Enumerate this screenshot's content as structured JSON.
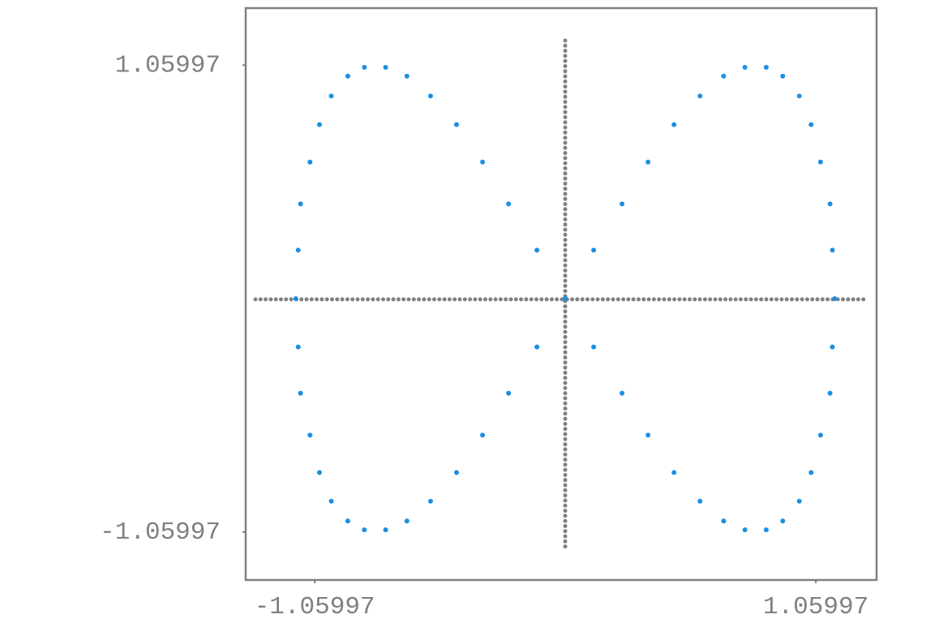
{
  "chart_data": {
    "type": "scatter",
    "series": [
      {
        "color": "#1a8fe3",
        "x": [
          0,
          0.12,
          0.24,
          0.35,
          0.46,
          0.57,
          0.67,
          0.76,
          0.85,
          0.92,
          0.99,
          1.04,
          1.08,
          1.12,
          1.13,
          1.14,
          1.13,
          1.12,
          1.08,
          1.04,
          0.99,
          0.92,
          0.85,
          0.76,
          0.67,
          0.57,
          0.46,
          0.35,
          0.24,
          0.12,
          0,
          -0.12,
          -0.24,
          -0.35,
          -0.46,
          -0.57,
          -0.67,
          -0.76,
          -0.85,
          -0.92,
          -0.99,
          -1.04,
          -1.08,
          -1.12,
          -1.13,
          -1.14,
          -1.13,
          -1.12,
          -1.08,
          -1.04,
          -0.99,
          -0.92,
          -0.85,
          -0.76,
          -0.67,
          -0.57,
          -0.46,
          -0.35,
          -0.24,
          -0.12
        ],
        "values": [
          0,
          0.22,
          0.43,
          0.62,
          0.79,
          0.92,
          1.01,
          1.05,
          1.05,
          1.01,
          0.92,
          0.79,
          0.62,
          0.43,
          0.22,
          0,
          -0.22,
          -0.43,
          -0.62,
          -0.79,
          -0.92,
          -1.01,
          -1.05,
          -1.05,
          -1.01,
          -0.92,
          -0.79,
          -0.62,
          -0.43,
          -0.22,
          0,
          0.22,
          0.43,
          0.62,
          0.79,
          0.92,
          1.01,
          1.05,
          1.05,
          1.01,
          0.92,
          0.79,
          0.62,
          0.43,
          0.22,
          0,
          -0.22,
          -0.43,
          -0.62,
          -0.79,
          -0.92,
          -1.01,
          -1.05,
          -1.05,
          -1.01,
          -0.92,
          -0.79,
          -0.62,
          -0.43,
          -0.22
        ]
      }
    ],
    "xlim": [
      -1.352,
      1.317
    ],
    "ylim": [
      -1.278,
      1.319
    ],
    "xticks": [
      -1.05997,
      1.05997
    ],
    "yticks": [
      -1.05997,
      1.05997
    ]
  }
}
